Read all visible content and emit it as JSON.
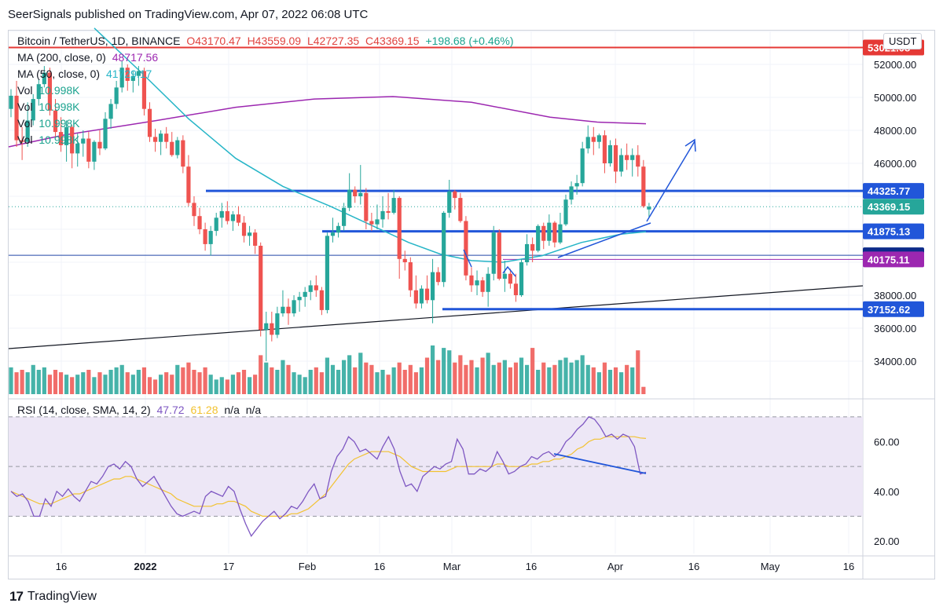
{
  "header": {
    "text": "SeerSignals published on TradingView.com, Apr 07, 2022 06:08 UTC"
  },
  "currency_label": "USDT",
  "legend": {
    "symbol": "Bitcoin / TetherUS, 1D, BINANCE",
    "open": "O43170.47",
    "high": "H43559.09",
    "low": "L42727.35",
    "close": "C43369.15",
    "change": "+198.68 (+0.46%)",
    "ma200_label": "MA (200, close, 0)",
    "ma200_value": "48717.56",
    "ma50_label": "MA (50, close, 0)",
    "ma50_value": "41729.17",
    "vol_rows": [
      {
        "label": "Vol",
        "value": "10.998K"
      },
      {
        "label": "Vol",
        "value": "10.998K"
      },
      {
        "label": "Vol",
        "value": "10.998K"
      },
      {
        "label": "Vol",
        "value": "10.998K"
      }
    ],
    "rsi_label": "RSI (14, close, SMA, 14, 2)",
    "rsi_value": "47.72",
    "rsi_sma": "61.28",
    "rsi_na1": "n/a",
    "rsi_na2": "n/a"
  },
  "footer": {
    "logo": "17",
    "brand": "TradingView"
  },
  "colors": {
    "up": "#26a69a",
    "down": "#ef5350",
    "ma200": "#9c27b0",
    "ma50": "#26b5c7",
    "level_line": "#2156d9",
    "resistance": "#e53935",
    "rsi": "#7e57c2",
    "rsi_sma": "#f2c230",
    "rsi_band": "#ede7f6"
  },
  "chart_data": [
    {
      "type": "candlestick",
      "title": "Bitcoin / TetherUS, 1D, BINANCE",
      "x_axis_labels": [
        "16",
        "2022",
        "17",
        "Feb",
        "16",
        "Mar",
        "16",
        "Apr",
        "16",
        "May",
        "16"
      ],
      "y_axis_labels": [
        "52000.00",
        "50000.00",
        "48000.00",
        "46000.00",
        "38000.00",
        "36000.00",
        "34000.00"
      ],
      "ylim": [
        32000,
        54000
      ],
      "grid": true,
      "price_tags": [
        {
          "value": "53021.08",
          "color": "#e53935"
        },
        {
          "value": "44325.77",
          "color": "#2156d9"
        },
        {
          "value": "43369.15",
          "color": "#26a69a"
        },
        {
          "value": "41875.13",
          "color": "#2156d9"
        },
        {
          "value": "40421.10",
          "color": "#0d2b8a"
        },
        {
          "value": "40175.11",
          "color": "#9c27b0"
        },
        {
          "value": "37152.62",
          "color": "#2156d9"
        }
      ],
      "horizontal_levels": [
        53021.08,
        44325.77,
        41875.13,
        40421.1,
        40175.11,
        37152.62
      ],
      "ohlc": [
        [
          49300,
          50500,
          48800,
          50100
        ],
        [
          50100,
          51000,
          47000,
          47400
        ],
        [
          47400,
          48200,
          46200,
          47300
        ],
        [
          47300,
          49700,
          47000,
          48600
        ],
        [
          48600,
          50200,
          48300,
          49900
        ],
        [
          49900,
          51100,
          49500,
          50800
        ],
        [
          50800,
          51900,
          50600,
          51500
        ],
        [
          51500,
          51800,
          48900,
          49200
        ],
        [
          49200,
          49900,
          47600,
          47900
        ],
        [
          47900,
          48800,
          46700,
          47100
        ],
        [
          47100,
          48600,
          46100,
          48200
        ],
        [
          48200,
          48300,
          45700,
          46600
        ],
        [
          46600,
          47800,
          45800,
          47200
        ],
        [
          47200,
          48000,
          46400,
          47500
        ],
        [
          47500,
          47900,
          45700,
          46100
        ],
        [
          46100,
          47400,
          45600,
          47300
        ],
        [
          47300,
          48000,
          46500,
          46900
        ],
        [
          46900,
          49100,
          46800,
          48700
        ],
        [
          48700,
          49900,
          48100,
          49600
        ],
        [
          49600,
          51000,
          49300,
          50600
        ],
        [
          50600,
          52200,
          50300,
          51800
        ],
        [
          51800,
          52000,
          50400,
          51000
        ],
        [
          51000,
          51600,
          50300,
          51300
        ],
        [
          51300,
          51900,
          50700,
          51600
        ],
        [
          51600,
          51800,
          48900,
          49300
        ],
        [
          49300,
          49700,
          47300,
          47600
        ],
        [
          47600,
          48100,
          46700,
          47300
        ],
        [
          47300,
          48000,
          46500,
          47800
        ],
        [
          47800,
          48200,
          46900,
          47300
        ],
        [
          47300,
          47900,
          46400,
          46500
        ],
        [
          46500,
          47600,
          46300,
          47400
        ],
        [
          47400,
          47700,
          45400,
          45800
        ],
        [
          45800,
          46500,
          43400,
          43600
        ],
        [
          43600,
          44000,
          42200,
          42800
        ],
        [
          42800,
          43300,
          41700,
          42000
        ],
        [
          42000,
          42400,
          40700,
          41100
        ],
        [
          41100,
          42200,
          40400,
          41900
        ],
        [
          41900,
          43000,
          41600,
          42700
        ],
        [
          42700,
          43600,
          42100,
          43100
        ],
        [
          43100,
          43700,
          42300,
          42500
        ],
        [
          42500,
          43100,
          41900,
          42900
        ],
        [
          42900,
          43400,
          42200,
          42400
        ],
        [
          42400,
          42800,
          41200,
          41600
        ],
        [
          41600,
          42200,
          41000,
          41800
        ],
        [
          41800,
          42000,
          40500,
          41000
        ],
        [
          41000,
          41200,
          35500,
          35900
        ],
        [
          35900,
          37000,
          34000,
          36300
        ],
        [
          36300,
          37000,
          35200,
          35600
        ],
        [
          35600,
          37300,
          35400,
          36900
        ],
        [
          36900,
          38300,
          36700,
          37300
        ],
        [
          37300,
          37800,
          36200,
          36900
        ],
        [
          36900,
          38000,
          36700,
          37700
        ],
        [
          37700,
          38200,
          37000,
          37900
        ],
        [
          37900,
          38500,
          37300,
          38200
        ],
        [
          38200,
          38900,
          37700,
          38600
        ],
        [
          38600,
          39200,
          37900,
          38300
        ],
        [
          38300,
          38500,
          36800,
          37100
        ],
        [
          37100,
          41800,
          36900,
          41600
        ],
        [
          41600,
          42700,
          41200,
          41800
        ],
        [
          41800,
          42400,
          41500,
          42200
        ],
        [
          42200,
          43600,
          41900,
          43300
        ],
        [
          43300,
          45400,
          43100,
          44400
        ],
        [
          44400,
          44600,
          43600,
          44000
        ],
        [
          44000,
          45900,
          43500,
          44200
        ],
        [
          44200,
          44500,
          42000,
          42500
        ],
        [
          42500,
          43000,
          41900,
          42300
        ],
        [
          42300,
          43500,
          42000,
          42600
        ],
        [
          42600,
          44000,
          42100,
          43100
        ],
        [
          43100,
          44200,
          42600,
          43000
        ],
        [
          43000,
          44400,
          42900,
          43900
        ],
        [
          43900,
          44000,
          39000,
          40200
        ],
        [
          40200,
          40700,
          39500,
          40000
        ],
        [
          40000,
          40300,
          37900,
          38300
        ],
        [
          38300,
          39200,
          37200,
          37500
        ],
        [
          37500,
          38600,
          37200,
          38400
        ],
        [
          38400,
          39200,
          37500,
          37700
        ],
        [
          37700,
          40200,
          36300,
          39400
        ],
        [
          39400,
          39700,
          38600,
          38800
        ],
        [
          38800,
          43100,
          38500,
          43000
        ],
        [
          43000,
          45000,
          42700,
          44300
        ],
        [
          44300,
          44400,
          43200,
          43900
        ],
        [
          43900,
          44200,
          42400,
          42500
        ],
        [
          42500,
          42800,
          38900,
          39200
        ],
        [
          39200,
          39700,
          38200,
          38600
        ],
        [
          38600,
          39500,
          38000,
          38900
        ],
        [
          38900,
          39100,
          37900,
          38200
        ],
        [
          38200,
          39700,
          37300,
          39300
        ],
        [
          39300,
          42200,
          38900,
          41800
        ],
        [
          41800,
          42000,
          38900,
          39000
        ],
        [
          39000,
          40100,
          38200,
          39300
        ],
        [
          39300,
          39600,
          38400,
          38700
        ],
        [
          38700,
          39300,
          37600,
          38000
        ],
        [
          38000,
          40200,
          37900,
          40000
        ],
        [
          40000,
          41700,
          39800,
          41100
        ],
        [
          41100,
          41500,
          40000,
          40700
        ],
        [
          40700,
          42300,
          40600,
          42200
        ],
        [
          42200,
          42400,
          40800,
          41300
        ],
        [
          41300,
          42900,
          41000,
          42400
        ],
        [
          42400,
          42500,
          40900,
          41200
        ],
        [
          41200,
          43000,
          41100,
          42300
        ],
        [
          42300,
          44100,
          42200,
          43800
        ],
        [
          43800,
          44900,
          43500,
          44600
        ],
        [
          44600,
          45300,
          44100,
          44800
        ],
        [
          44800,
          47300,
          44600,
          46900
        ],
        [
          46900,
          48300,
          46600,
          47600
        ],
        [
          47600,
          48200,
          46500,
          47300
        ],
        [
          47300,
          47800,
          46900,
          47700
        ],
        [
          47700,
          48000,
          45400,
          46000
        ],
        [
          46000,
          47400,
          45800,
          47100
        ],
        [
          47100,
          47500,
          44800,
          45500
        ],
        [
          45500,
          46900,
          45200,
          46500
        ],
        [
          46500,
          47200,
          45600,
          46200
        ],
        [
          46200,
          46900,
          45200,
          46500
        ],
        [
          46500,
          47100,
          45200,
          45800
        ],
        [
          45800,
          46200,
          43300,
          43400
        ],
        [
          43200,
          43600,
          42700,
          43369
        ]
      ],
      "volume_relative": [
        0.55,
        0.45,
        0.5,
        0.45,
        0.6,
        0.5,
        0.55,
        0.4,
        0.5,
        0.45,
        0.4,
        0.35,
        0.4,
        0.45,
        0.5,
        0.35,
        0.45,
        0.4,
        0.5,
        0.55,
        0.6,
        0.45,
        0.4,
        0.5,
        0.55,
        0.35,
        0.3,
        0.4,
        0.45,
        0.4,
        0.6,
        0.55,
        0.65,
        0.5,
        0.45,
        0.55,
        0.4,
        0.3,
        0.35,
        0.3,
        0.4,
        0.45,
        0.5,
        0.35,
        0.4,
        0.8,
        0.65,
        0.55,
        0.5,
        0.7,
        0.6,
        0.45,
        0.4,
        0.35,
        0.5,
        0.55,
        0.45,
        0.75,
        0.6,
        0.5,
        0.7,
        0.8,
        0.55,
        0.85,
        0.65,
        0.6,
        0.45,
        0.5,
        0.4,
        0.55,
        0.65,
        0.5,
        0.6,
        0.45,
        0.55,
        0.75,
        1.0,
        0.7,
        0.95,
        0.9,
        0.65,
        0.8,
        0.6,
        0.7,
        0.55,
        0.75,
        0.85,
        0.6,
        0.65,
        0.7,
        0.55,
        0.65,
        0.75,
        0.6,
        0.95,
        0.5,
        0.65,
        0.55,
        0.6,
        0.7,
        0.75,
        0.65,
        0.7,
        0.8,
        0.6,
        0.55,
        0.45,
        0.65,
        0.5,
        0.55,
        0.45,
        0.6,
        0.55,
        0.9,
        0.15
      ]
    },
    {
      "type": "line",
      "title": "RSI (14, close, SMA, 14, 2)",
      "y_axis_labels": [
        "60.00",
        "40.00",
        "20.00"
      ],
      "ylim": [
        15,
        75
      ],
      "band": [
        30,
        70
      ],
      "series": [
        {
          "name": "RSI",
          "values": [
            40,
            38,
            39,
            36,
            30,
            30,
            37,
            34,
            40,
            38,
            41,
            38,
            36,
            40,
            44,
            43,
            46,
            50,
            51,
            49,
            52,
            50,
            45,
            42,
            44,
            46,
            42,
            38,
            34,
            31,
            30,
            31,
            32,
            31,
            38,
            40,
            39,
            38,
            42,
            40,
            33,
            27,
            22,
            25,
            28,
            30,
            32,
            29,
            31,
            34,
            33,
            36,
            40,
            43,
            37,
            38,
            48,
            54,
            57,
            62,
            60,
            56,
            57,
            55,
            53,
            58,
            62,
            57,
            48,
            42,
            43,
            40,
            46,
            48,
            50,
            49,
            51,
            52,
            61,
            57,
            47,
            47,
            49,
            48,
            50,
            56,
            52,
            47,
            48,
            50,
            51,
            54,
            53,
            55,
            56,
            54,
            56,
            60,
            62,
            65,
            67,
            70,
            69,
            66,
            62,
            63,
            61,
            63,
            62,
            58,
            47,
            47.72
          ]
        },
        {
          "name": "SMA",
          "values": [
            40,
            39,
            38,
            37,
            36,
            35,
            35,
            35,
            36,
            37,
            38,
            39,
            39,
            40,
            41,
            42,
            43,
            44,
            45,
            45,
            46,
            46,
            45,
            44,
            43,
            42,
            41,
            40,
            39,
            37,
            36,
            35,
            34,
            34,
            34,
            34,
            35,
            35,
            36,
            36,
            35,
            34,
            32,
            31,
            30,
            30,
            30,
            30,
            30,
            31,
            31,
            32,
            33,
            35,
            37,
            39,
            42,
            45,
            48,
            51,
            53,
            54,
            55,
            56,
            56,
            56,
            56,
            55,
            54,
            52,
            50,
            49,
            48,
            48,
            48,
            48,
            48,
            49,
            50,
            50,
            50,
            50,
            50,
            50,
            50,
            51,
            51,
            50,
            50,
            50,
            50,
            51,
            51,
            52,
            52,
            53,
            53,
            54,
            55,
            57,
            58,
            60,
            61,
            61,
            62,
            62,
            62,
            62,
            62,
            62,
            61.5,
            61.28
          ]
        }
      ]
    }
  ]
}
